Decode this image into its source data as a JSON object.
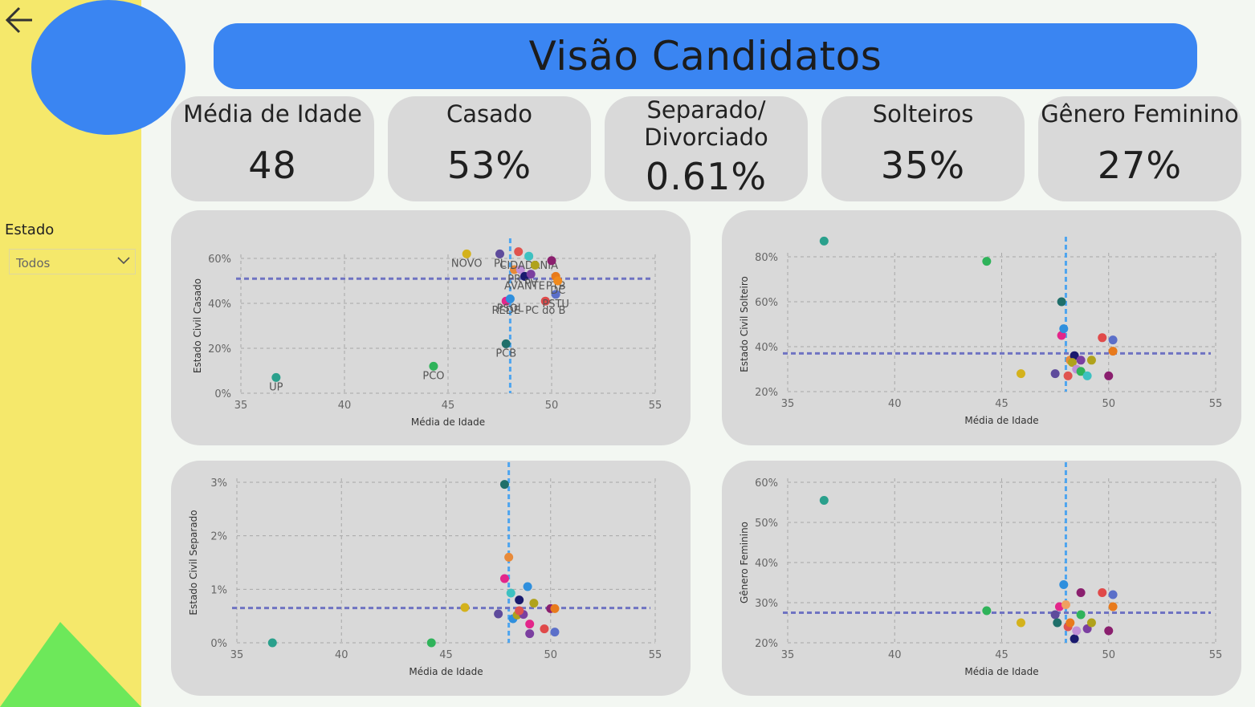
{
  "sidebar": {
    "filter_label": "Estado",
    "filter_value": "Todos",
    "back_icon": "arrow-left-icon"
  },
  "header": {
    "title": "Visão Candidatos"
  },
  "kpis": [
    {
      "label": "Média de Idade",
      "value": "48"
    },
    {
      "label": "Casado",
      "value": "53%"
    },
    {
      "label": "Separado/\nDivorciado",
      "value": "0.61%"
    },
    {
      "label": "Solteiros",
      "value": "35%"
    },
    {
      "label": "Gênero Feminino",
      "value": "27%"
    }
  ],
  "colors": {
    "sidebar": "#f5e86b",
    "accent": "#3a85f2",
    "card": "#d9d9d9",
    "triangle": "#6de85a",
    "ref_line_h": "#6f73c2",
    "ref_line_v": "#4ea5ef"
  },
  "chart_data": [
    {
      "type": "scatter",
      "ylabel": "Estado Civil Casado",
      "xlabel": "Média de Idade",
      "xlim": [
        35,
        55
      ],
      "ylim": [
        0,
        0.6
      ],
      "xticks": [
        "35",
        "40",
        "45",
        "50",
        "55"
      ],
      "yticks": [
        "0%",
        "20%",
        "40%",
        "60%"
      ],
      "ref_x": 48.0,
      "ref_y": 0.51,
      "points": [
        {
          "x": 36.7,
          "y": 0.07,
          "label": "UP",
          "color": "#2aa08c"
        },
        {
          "x": 44.3,
          "y": 0.12,
          "label": "PCO",
          "color": "#2fb35a"
        },
        {
          "x": 45.9,
          "y": 0.62,
          "label": "NOVO",
          "color": "#d4b21c"
        },
        {
          "x": 47.5,
          "y": 0.62,
          "label": "PL",
          "color": "#5e4b9c"
        },
        {
          "x": 47.8,
          "y": 0.22,
          "label": "PCB",
          "color": "#1f6f6a"
        },
        {
          "x": 47.8,
          "y": 0.41,
          "label": "REDE",
          "color": "#e3268a"
        },
        {
          "x": 48.0,
          "y": 0.42,
          "label": "PSOL",
          "color": "#2f8fdd"
        },
        {
          "x": 48.2,
          "y": 0.55,
          "label": "PR",
          "color": "#e88a3a"
        },
        {
          "x": 48.4,
          "y": 0.63,
          "label": "",
          "color": "#e0534f"
        },
        {
          "x": 48.5,
          "y": 0.55,
          "label": "",
          "color": "#c08fd8"
        },
        {
          "x": 48.7,
          "y": 0.52,
          "label": "AVANTE",
          "color": "#1a1a6e"
        },
        {
          "x": 48.9,
          "y": 0.61,
          "label": "CIDADANIA",
          "color": "#3ec1c1"
        },
        {
          "x": 49.0,
          "y": 0.53,
          "label": "PV",
          "color": "#7b3fa0"
        },
        {
          "x": 49.2,
          "y": 0.57,
          "label": "",
          "color": "#b0a21c"
        },
        {
          "x": 49.7,
          "y": 0.41,
          "label": "PC do B",
          "color": "#e04a4a"
        },
        {
          "x": 50.0,
          "y": 0.59,
          "label": "",
          "color": "#8a1f6e"
        },
        {
          "x": 50.2,
          "y": 0.52,
          "label": "PTB",
          "color": "#e87a1c"
        },
        {
          "x": 50.2,
          "y": 0.44,
          "label": "PSTU",
          "color": "#5b6fc9"
        },
        {
          "x": 50.3,
          "y": 0.5,
          "label": "DC",
          "color": "#f08a1c"
        }
      ]
    },
    {
      "type": "scatter",
      "ylabel": "Estado Civil Solteiro",
      "xlabel": "Média de Idade",
      "xlim": [
        35,
        55
      ],
      "ylim": [
        0.2,
        0.8
      ],
      "xticks": [
        "35",
        "40",
        "45",
        "50",
        "55"
      ],
      "yticks": [
        "20%",
        "40%",
        "60%",
        "80%"
      ],
      "ref_x": 48.0,
      "ref_y": 0.37,
      "points": [
        {
          "x": 36.7,
          "y": 0.87,
          "color": "#2aa08c"
        },
        {
          "x": 44.3,
          "y": 0.78,
          "color": "#2fb35a"
        },
        {
          "x": 45.9,
          "y": 0.28,
          "color": "#d4b21c"
        },
        {
          "x": 47.5,
          "y": 0.28,
          "color": "#5e4b9c"
        },
        {
          "x": 47.8,
          "y": 0.6,
          "color": "#1f6f6a"
        },
        {
          "x": 47.8,
          "y": 0.45,
          "color": "#e3268a"
        },
        {
          "x": 47.9,
          "y": 0.48,
          "color": "#2f8fdd"
        },
        {
          "x": 48.2,
          "y": 0.34,
          "color": "#e88a3a"
        },
        {
          "x": 48.4,
          "y": 0.36,
          "color": "#1a1a6e"
        },
        {
          "x": 48.3,
          "y": 0.33,
          "color": "#b0a21c"
        },
        {
          "x": 48.5,
          "y": 0.3,
          "color": "#c08fd8"
        },
        {
          "x": 48.7,
          "y": 0.34,
          "color": "#7b3fa0"
        },
        {
          "x": 48.7,
          "y": 0.29,
          "color": "#2fb35a"
        },
        {
          "x": 49.0,
          "y": 0.27,
          "color": "#3ec1c1"
        },
        {
          "x": 49.2,
          "y": 0.34,
          "color": "#b0a21c"
        },
        {
          "x": 49.7,
          "y": 0.44,
          "color": "#e04a4a"
        },
        {
          "x": 50.0,
          "y": 0.27,
          "color": "#8a1f6e"
        },
        {
          "x": 50.2,
          "y": 0.38,
          "color": "#e87a1c"
        },
        {
          "x": 50.2,
          "y": 0.43,
          "color": "#5b6fc9"
        },
        {
          "x": 48.1,
          "y": 0.27,
          "color": "#e0534f"
        }
      ]
    },
    {
      "type": "scatter",
      "ylabel": "Estado Civil Separado",
      "xlabel": "Média de Idade",
      "xlim": [
        35,
        55
      ],
      "ylim": [
        0,
        0.03
      ],
      "xticks": [
        "35",
        "40",
        "45",
        "50",
        "55"
      ],
      "yticks": [
        "0%",
        "1%",
        "2%",
        "3%"
      ],
      "ref_x": 48.0,
      "ref_y": 0.0065,
      "points": [
        {
          "x": 36.7,
          "y": 0.0,
          "color": "#2aa08c"
        },
        {
          "x": 44.3,
          "y": 0.0,
          "color": "#2fb35a"
        },
        {
          "x": 45.9,
          "y": 0.0066,
          "color": "#d4b21c"
        },
        {
          "x": 47.5,
          "y": 0.0054,
          "color": "#5e4b9c"
        },
        {
          "x": 47.8,
          "y": 0.0296,
          "color": "#1f6f6a"
        },
        {
          "x": 47.8,
          "y": 0.012,
          "color": "#e3268a"
        },
        {
          "x": 48.0,
          "y": 0.016,
          "color": "#e88a3a"
        },
        {
          "x": 48.1,
          "y": 0.0093,
          "color": "#3ec1c1"
        },
        {
          "x": 48.2,
          "y": 0.0045,
          "color": "#2f8fdd"
        },
        {
          "x": 48.4,
          "y": 0.0052,
          "color": "#b0a21c"
        },
        {
          "x": 48.5,
          "y": 0.008,
          "color": "#1a1a6e"
        },
        {
          "x": 48.7,
          "y": 0.0053,
          "color": "#7b3fa0"
        },
        {
          "x": 48.5,
          "y": 0.006,
          "color": "#e0534f"
        },
        {
          "x": 48.9,
          "y": 0.0105,
          "color": "#2f8fdd"
        },
        {
          "x": 49.0,
          "y": 0.0035,
          "color": "#e3268a"
        },
        {
          "x": 49.2,
          "y": 0.0074,
          "color": "#b0a21c"
        },
        {
          "x": 49.0,
          "y": 0.0017,
          "color": "#7b3fa0"
        },
        {
          "x": 49.7,
          "y": 0.0026,
          "color": "#e04a4a"
        },
        {
          "x": 50.0,
          "y": 0.0064,
          "color": "#8a1f6e"
        },
        {
          "x": 50.2,
          "y": 0.0064,
          "color": "#e87a1c"
        },
        {
          "x": 50.2,
          "y": 0.002,
          "color": "#5b6fc9"
        }
      ]
    },
    {
      "type": "scatter",
      "ylabel": "Gênero Feminino",
      "xlabel": "Média de Idade",
      "xlim": [
        35,
        55
      ],
      "ylim": [
        0.2,
        0.6
      ],
      "xticks": [
        "35",
        "40",
        "45",
        "50",
        "55"
      ],
      "yticks": [
        "20%",
        "30%",
        "40%",
        "50%",
        "60%"
      ],
      "ref_x": 48.0,
      "ref_y": 0.275,
      "points": [
        {
          "x": 36.7,
          "y": 0.555,
          "color": "#2aa08c"
        },
        {
          "x": 44.3,
          "y": 0.28,
          "color": "#2fb35a"
        },
        {
          "x": 45.9,
          "y": 0.25,
          "color": "#d4b21c"
        },
        {
          "x": 47.5,
          "y": 0.27,
          "color": "#5e4b9c"
        },
        {
          "x": 47.6,
          "y": 0.25,
          "color": "#1f6f6a"
        },
        {
          "x": 47.7,
          "y": 0.29,
          "color": "#e3268a"
        },
        {
          "x": 47.9,
          "y": 0.345,
          "color": "#2f8fdd"
        },
        {
          "x": 48.0,
          "y": 0.295,
          "color": "#f0a060"
        },
        {
          "x": 48.1,
          "y": 0.24,
          "color": "#e0534f"
        },
        {
          "x": 48.2,
          "y": 0.25,
          "color": "#e87a1c"
        },
        {
          "x": 48.4,
          "y": 0.21,
          "color": "#1a1a6e"
        },
        {
          "x": 48.5,
          "y": 0.23,
          "color": "#c08fd8"
        },
        {
          "x": 48.7,
          "y": 0.325,
          "color": "#8a1f6e"
        },
        {
          "x": 48.7,
          "y": 0.27,
          "color": "#2fb35a"
        },
        {
          "x": 49.0,
          "y": 0.235,
          "color": "#7b3fa0"
        },
        {
          "x": 49.2,
          "y": 0.25,
          "color": "#b0a21c"
        },
        {
          "x": 49.7,
          "y": 0.325,
          "color": "#e04a4a"
        },
        {
          "x": 50.0,
          "y": 0.23,
          "color": "#8a1f6e"
        },
        {
          "x": 50.2,
          "y": 0.32,
          "color": "#5b6fc9"
        },
        {
          "x": 50.2,
          "y": 0.29,
          "color": "#e87a1c"
        }
      ]
    }
  ]
}
